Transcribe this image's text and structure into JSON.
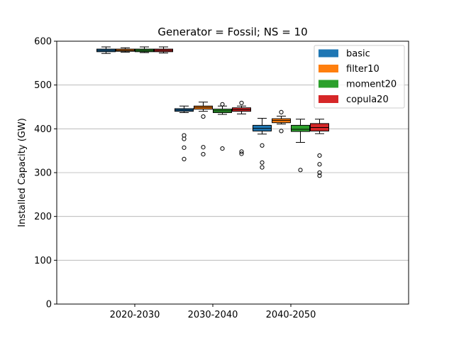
{
  "chart_data": {
    "type": "box",
    "title": "Generator = Fossil; NS = 10",
    "xlabel": "",
    "ylabel": "Installed Capacity (GW)",
    "ylim": [
      0,
      600
    ],
    "yticks": [
      0,
      100,
      200,
      300,
      400,
      500,
      600
    ],
    "grid": "horizontal",
    "legend_position": "top-right",
    "categories": [
      "2020-2030",
      "2030-2040",
      "2040-2050"
    ],
    "series": [
      {
        "name": "basic",
        "color": "#1f77b4",
        "boxes": [
          {
            "whisker_low": 572,
            "q1": 576,
            "median": 579,
            "q3": 582,
            "whisker_high": 587,
            "outliers": []
          },
          {
            "whisker_low": 437,
            "q1": 440,
            "median": 443,
            "q3": 446,
            "whisker_high": 452,
            "outliers": [
              385,
              377,
              357,
              331
            ]
          },
          {
            "whisker_low": 388,
            "q1": 395,
            "median": 401,
            "q3": 408,
            "whisker_high": 424,
            "outliers": [
              362,
              323,
              312
            ]
          }
        ]
      },
      {
        "name": "filter10",
        "color": "#ff7f0e",
        "boxes": [
          {
            "whisker_low": 575,
            "q1": 577,
            "median": 579,
            "q3": 582,
            "whisker_high": 585,
            "outliers": []
          },
          {
            "whisker_low": 440,
            "q1": 445,
            "median": 449,
            "q3": 452,
            "whisker_high": 461,
            "outliers": [
              428,
              358,
              342
            ]
          },
          {
            "whisker_low": 411,
            "q1": 414,
            "median": 419,
            "q3": 423,
            "whisker_high": 429,
            "outliers": [
              438,
              395
            ]
          }
        ]
      },
      {
        "name": "moment20",
        "color": "#2ca02c",
        "boxes": [
          {
            "whisker_low": 574,
            "q1": 576,
            "median": 579,
            "q3": 582,
            "whisker_high": 587,
            "outliers": []
          },
          {
            "whisker_low": 433,
            "q1": 437,
            "median": 441,
            "q3": 445,
            "whisker_high": 452,
            "outliers": [
              456,
              355
            ]
          },
          {
            "whisker_low": 369,
            "q1": 394,
            "median": 399,
            "q3": 408,
            "whisker_high": 422,
            "outliers": [
              306
            ]
          }
        ]
      },
      {
        "name": "copula20",
        "color": "#d62728",
        "boxes": [
          {
            "whisker_low": 573,
            "q1": 576,
            "median": 579,
            "q3": 582,
            "whisker_high": 587,
            "outliers": []
          },
          {
            "whisker_low": 434,
            "q1": 440,
            "median": 444,
            "q3": 448,
            "whisker_high": 452,
            "outliers": [
              459,
              348,
              343
            ]
          },
          {
            "whisker_low": 389,
            "q1": 395,
            "median": 403,
            "q3": 412,
            "whisker_high": 422,
            "outliers": [
              339,
              319,
              300,
              293
            ]
          }
        ]
      }
    ]
  }
}
